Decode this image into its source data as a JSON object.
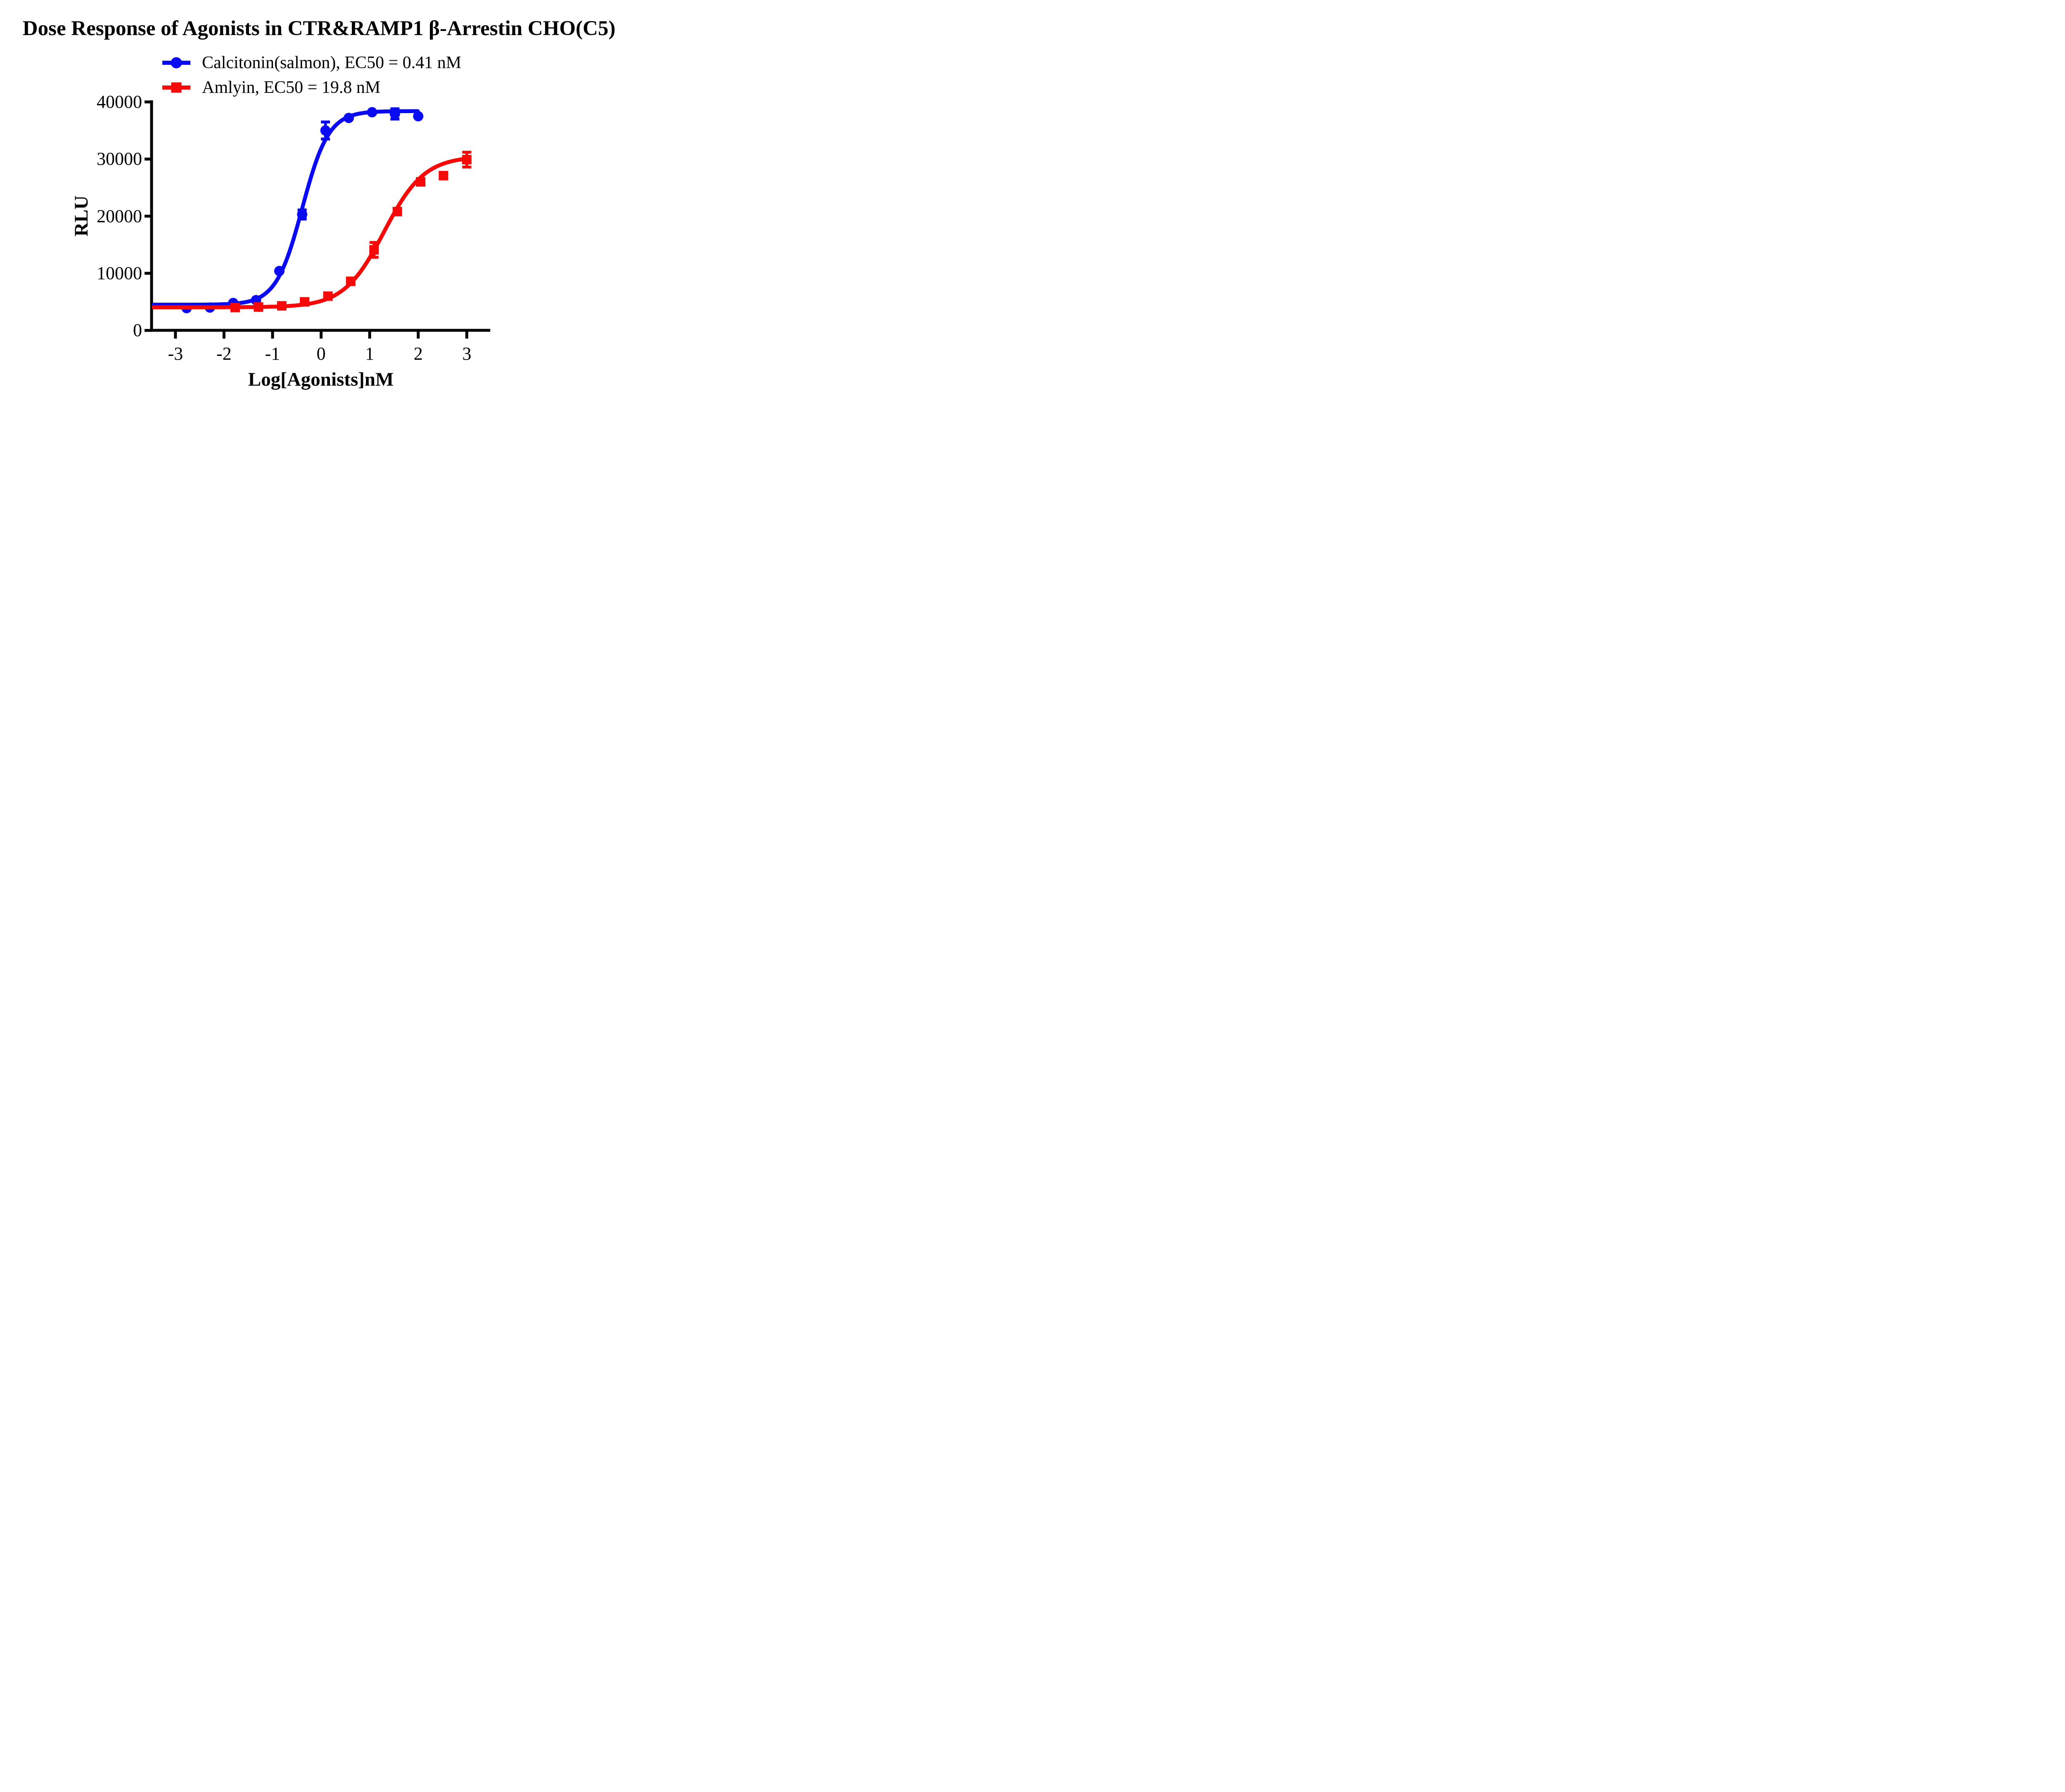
{
  "title": "Dose Response of Agonists in CTR&RAMP1 β-Arrestin CHO(C5)",
  "colors": {
    "blue": "#0b0bf2",
    "red": "#f60909",
    "axis": "#000000",
    "background": "#ffffff"
  },
  "chart_data": {
    "type": "line",
    "title": "Dose Response of Agonists in CTR&RAMP1 β-Arrestin CHO(C5)",
    "xlabel": "Log[Agonists]nM",
    "ylabel": "RLU",
    "xlim": [
      -3.5,
      3.5
    ],
    "ylim": [
      0,
      40000
    ],
    "x_ticks": [
      -3,
      -2,
      -1,
      0,
      1,
      2,
      3
    ],
    "y_ticks": [
      0,
      10000,
      20000,
      30000,
      40000
    ],
    "grid": false,
    "legend_position": "top-center",
    "series": [
      {
        "name": "Calcitonin(salmon), EC50 = 0.41 nM",
        "ec50_label": "EC50 = 0.41 nM",
        "ec50_nM": 0.41,
        "marker": "circle",
        "color": "#0b0bf2",
        "points": [
          {
            "x": -2.77,
            "y": 3900,
            "err": 0
          },
          {
            "x": -2.29,
            "y": 4000,
            "err": 0
          },
          {
            "x": -1.81,
            "y": 4800,
            "err": 0
          },
          {
            "x": -1.34,
            "y": 5300,
            "err": 0
          },
          {
            "x": -0.86,
            "y": 10400,
            "err": 0
          },
          {
            "x": -0.39,
            "y": 20300,
            "err": 800
          },
          {
            "x": 0.09,
            "y": 35000,
            "err": 1500
          },
          {
            "x": 0.57,
            "y": 37200,
            "err": 0
          },
          {
            "x": 1.05,
            "y": 38200,
            "err": 0
          },
          {
            "x": 1.52,
            "y": 37900,
            "err": 900
          },
          {
            "x": 2.0,
            "y": 37500,
            "err": 0
          }
        ],
        "fit": {
          "bottom": 4500,
          "top": 38400,
          "log_ec50": -0.387,
          "hill": 1.6,
          "curve_start": -3.45,
          "curve_end": 2.0
        }
      },
      {
        "name": "Amlyin, EC50 = 19.8 nM",
        "ec50_label": "EC50 = 19.8 nM",
        "ec50_nM": 19.8,
        "marker": "square",
        "color": "#f60909",
        "points": [
          {
            "x": -1.77,
            "y": 4000,
            "err": 0
          },
          {
            "x": -1.29,
            "y": 4100,
            "err": 0
          },
          {
            "x": -0.81,
            "y": 4300,
            "err": 0
          },
          {
            "x": -0.34,
            "y": 5000,
            "err": 0
          },
          {
            "x": 0.14,
            "y": 6000,
            "err": 0
          },
          {
            "x": 0.61,
            "y": 8600,
            "err": 0
          },
          {
            "x": 1.09,
            "y": 14100,
            "err": 1300
          },
          {
            "x": 1.57,
            "y": 20800,
            "err": 0
          },
          {
            "x": 2.05,
            "y": 26000,
            "err": 0
          },
          {
            "x": 2.52,
            "y": 27100,
            "err": 0
          },
          {
            "x": 3.0,
            "y": 29900,
            "err": 1300
          }
        ],
        "fit": {
          "bottom": 4050,
          "top": 30500,
          "log_ec50": 1.297,
          "hill": 1.05,
          "curve_start": -3.45,
          "curve_end": 3.0
        }
      }
    ]
  }
}
